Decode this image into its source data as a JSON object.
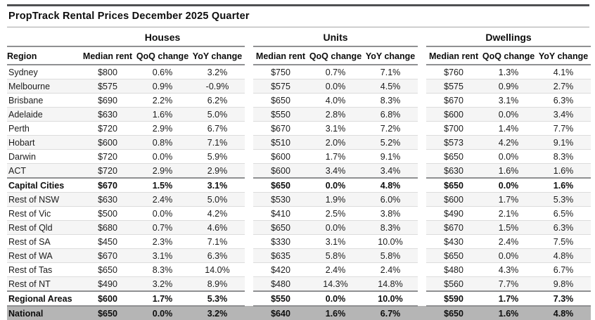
{
  "title": "PropTrack Rental Prices December 2025 Quarter",
  "colors": {
    "top_rule": "#4f5052",
    "header_rule": "#8f9092",
    "row_rule": "#dcdcdc",
    "stripe_bg": "#f5f5f5",
    "national_row_bg": "#b5b5b5",
    "text": "#121212"
  },
  "table": {
    "region_header": "Region",
    "groups": [
      {
        "label": "Houses"
      },
      {
        "label": "Units"
      },
      {
        "label": "Dwellings"
      }
    ],
    "sub_headers": [
      "Median rent",
      "QoQ change",
      "YoY change"
    ],
    "rows": [
      {
        "region": "Sydney",
        "style": "normal",
        "houses": [
          "$800",
          "0.6%",
          "3.2%"
        ],
        "units": [
          "$750",
          "0.7%",
          "7.1%"
        ],
        "dwellings": [
          "$760",
          "1.3%",
          "4.1%"
        ]
      },
      {
        "region": "Melbourne",
        "style": "normal",
        "houses": [
          "$575",
          "0.9%",
          "-0.9%"
        ],
        "units": [
          "$575",
          "0.0%",
          "4.5%"
        ],
        "dwellings": [
          "$575",
          "0.9%",
          "2.7%"
        ]
      },
      {
        "region": "Brisbane",
        "style": "normal",
        "houses": [
          "$690",
          "2.2%",
          "6.2%"
        ],
        "units": [
          "$650",
          "4.0%",
          "8.3%"
        ],
        "dwellings": [
          "$670",
          "3.1%",
          "6.3%"
        ]
      },
      {
        "region": "Adelaide",
        "style": "normal",
        "houses": [
          "$630",
          "1.6%",
          "5.0%"
        ],
        "units": [
          "$550",
          "2.8%",
          "6.8%"
        ],
        "dwellings": [
          "$600",
          "0.0%",
          "3.4%"
        ]
      },
      {
        "region": "Perth",
        "style": "normal",
        "houses": [
          "$720",
          "2.9%",
          "6.7%"
        ],
        "units": [
          "$670",
          "3.1%",
          "7.2%"
        ],
        "dwellings": [
          "$700",
          "1.4%",
          "7.7%"
        ]
      },
      {
        "region": "Hobart",
        "style": "normal",
        "houses": [
          "$600",
          "0.8%",
          "7.1%"
        ],
        "units": [
          "$510",
          "2.0%",
          "5.2%"
        ],
        "dwellings": [
          "$573",
          "4.2%",
          "9.1%"
        ]
      },
      {
        "region": "Darwin",
        "style": "normal",
        "houses": [
          "$720",
          "0.0%",
          "5.9%"
        ],
        "units": [
          "$600",
          "1.7%",
          "9.1%"
        ],
        "dwellings": [
          "$650",
          "0.0%",
          "8.3%"
        ]
      },
      {
        "region": "ACT",
        "style": "normal",
        "houses": [
          "$720",
          "2.9%",
          "2.9%"
        ],
        "units": [
          "$600",
          "3.4%",
          "3.4%"
        ],
        "dwellings": [
          "$630",
          "1.6%",
          "1.6%"
        ]
      },
      {
        "region": "Capital Cities",
        "style": "summary",
        "houses": [
          "$670",
          "1.5%",
          "3.1%"
        ],
        "units": [
          "$650",
          "0.0%",
          "4.8%"
        ],
        "dwellings": [
          "$650",
          "0.0%",
          "1.6%"
        ]
      },
      {
        "region": "Rest of NSW",
        "style": "normal",
        "houses": [
          "$630",
          "2.4%",
          "5.0%"
        ],
        "units": [
          "$530",
          "1.9%",
          "6.0%"
        ],
        "dwellings": [
          "$600",
          "1.7%",
          "5.3%"
        ]
      },
      {
        "region": "Rest of Vic",
        "style": "normal",
        "houses": [
          "$500",
          "0.0%",
          "4.2%"
        ],
        "units": [
          "$410",
          "2.5%",
          "3.8%"
        ],
        "dwellings": [
          "$490",
          "2.1%",
          "6.5%"
        ]
      },
      {
        "region": "Rest of Qld",
        "style": "normal",
        "houses": [
          "$680",
          "0.7%",
          "4.6%"
        ],
        "units": [
          "$650",
          "0.0%",
          "8.3%"
        ],
        "dwellings": [
          "$670",
          "1.5%",
          "6.3%"
        ]
      },
      {
        "region": "Rest of SA",
        "style": "normal",
        "houses": [
          "$450",
          "2.3%",
          "7.1%"
        ],
        "units": [
          "$330",
          "3.1%",
          "10.0%"
        ],
        "dwellings": [
          "$430",
          "2.4%",
          "7.5%"
        ]
      },
      {
        "region": "Rest of WA",
        "style": "normal",
        "houses": [
          "$670",
          "3.1%",
          "6.3%"
        ],
        "units": [
          "$635",
          "5.8%",
          "5.8%"
        ],
        "dwellings": [
          "$650",
          "0.0%",
          "4.8%"
        ]
      },
      {
        "region": "Rest of Tas",
        "style": "normal",
        "houses": [
          "$650",
          "8.3%",
          "14.0%"
        ],
        "units": [
          "$420",
          "2.4%",
          "2.4%"
        ],
        "dwellings": [
          "$480",
          "4.3%",
          "6.7%"
        ]
      },
      {
        "region": "Rest of NT",
        "style": "normal",
        "houses": [
          "$490",
          "3.2%",
          "8.9%"
        ],
        "units": [
          "$480",
          "14.3%",
          "14.8%"
        ],
        "dwellings": [
          "$560",
          "7.7%",
          "9.8%"
        ]
      },
      {
        "region": "Regional Areas",
        "style": "summary",
        "houses": [
          "$600",
          "1.7%",
          "5.3%"
        ],
        "units": [
          "$550",
          "0.0%",
          "10.0%"
        ],
        "dwellings": [
          "$590",
          "1.7%",
          "7.3%"
        ]
      },
      {
        "region": "National",
        "style": "national",
        "houses": [
          "$650",
          "0.0%",
          "3.2%"
        ],
        "units": [
          "$640",
          "1.6%",
          "6.7%"
        ],
        "dwellings": [
          "$650",
          "1.6%",
          "4.8%"
        ]
      }
    ]
  },
  "chart_data": {
    "type": "table",
    "title": "PropTrack Rental Prices December 2025 Quarter",
    "column_groups": [
      "Houses",
      "Units",
      "Dwellings"
    ],
    "columns_per_group": [
      "Median rent",
      "QoQ change",
      "YoY change"
    ],
    "row_header": "Region",
    "rows": [
      [
        "Sydney",
        "$800",
        "0.6%",
        "3.2%",
        "$750",
        "0.7%",
        "7.1%",
        "$760",
        "1.3%",
        "4.1%"
      ],
      [
        "Melbourne",
        "$575",
        "0.9%",
        "-0.9%",
        "$575",
        "0.0%",
        "4.5%",
        "$575",
        "0.9%",
        "2.7%"
      ],
      [
        "Brisbane",
        "$690",
        "2.2%",
        "6.2%",
        "$650",
        "4.0%",
        "8.3%",
        "$670",
        "3.1%",
        "6.3%"
      ],
      [
        "Adelaide",
        "$630",
        "1.6%",
        "5.0%",
        "$550",
        "2.8%",
        "6.8%",
        "$600",
        "0.0%",
        "3.4%"
      ],
      [
        "Perth",
        "$720",
        "2.9%",
        "6.7%",
        "$670",
        "3.1%",
        "7.2%",
        "$700",
        "1.4%",
        "7.7%"
      ],
      [
        "Hobart",
        "$600",
        "0.8%",
        "7.1%",
        "$510",
        "2.0%",
        "5.2%",
        "$573",
        "4.2%",
        "9.1%"
      ],
      [
        "Darwin",
        "$720",
        "0.0%",
        "5.9%",
        "$600",
        "1.7%",
        "9.1%",
        "$650",
        "0.0%",
        "8.3%"
      ],
      [
        "ACT",
        "$720",
        "2.9%",
        "2.9%",
        "$600",
        "3.4%",
        "3.4%",
        "$630",
        "1.6%",
        "1.6%"
      ],
      [
        "Capital Cities",
        "$670",
        "1.5%",
        "3.1%",
        "$650",
        "0.0%",
        "4.8%",
        "$650",
        "0.0%",
        "1.6%"
      ],
      [
        "Rest of NSW",
        "$630",
        "2.4%",
        "5.0%",
        "$530",
        "1.9%",
        "6.0%",
        "$600",
        "1.7%",
        "5.3%"
      ],
      [
        "Rest of Vic",
        "$500",
        "0.0%",
        "4.2%",
        "$410",
        "2.5%",
        "3.8%",
        "$490",
        "2.1%",
        "6.5%"
      ],
      [
        "Rest of Qld",
        "$680",
        "0.7%",
        "4.6%",
        "$650",
        "0.0%",
        "8.3%",
        "$670",
        "1.5%",
        "6.3%"
      ],
      [
        "Rest of SA",
        "$450",
        "2.3%",
        "7.1%",
        "$330",
        "3.1%",
        "10.0%",
        "$430",
        "2.4%",
        "7.5%"
      ],
      [
        "Rest of WA",
        "$670",
        "3.1%",
        "6.3%",
        "$635",
        "5.8%",
        "5.8%",
        "$650",
        "0.0%",
        "4.8%"
      ],
      [
        "Rest of Tas",
        "$650",
        "8.3%",
        "14.0%",
        "$420",
        "2.4%",
        "2.4%",
        "$480",
        "4.3%",
        "6.7%"
      ],
      [
        "Rest of NT",
        "$490",
        "3.2%",
        "8.9%",
        "$480",
        "14.3%",
        "14.8%",
        "$560",
        "7.7%",
        "9.8%"
      ],
      [
        "Regional Areas",
        "$600",
        "1.7%",
        "5.3%",
        "$550",
        "0.0%",
        "10.0%",
        "$590",
        "1.7%",
        "7.3%"
      ],
      [
        "National",
        "$650",
        "0.0%",
        "3.2%",
        "$640",
        "1.6%",
        "6.7%",
        "$650",
        "1.6%",
        "4.8%"
      ]
    ]
  }
}
